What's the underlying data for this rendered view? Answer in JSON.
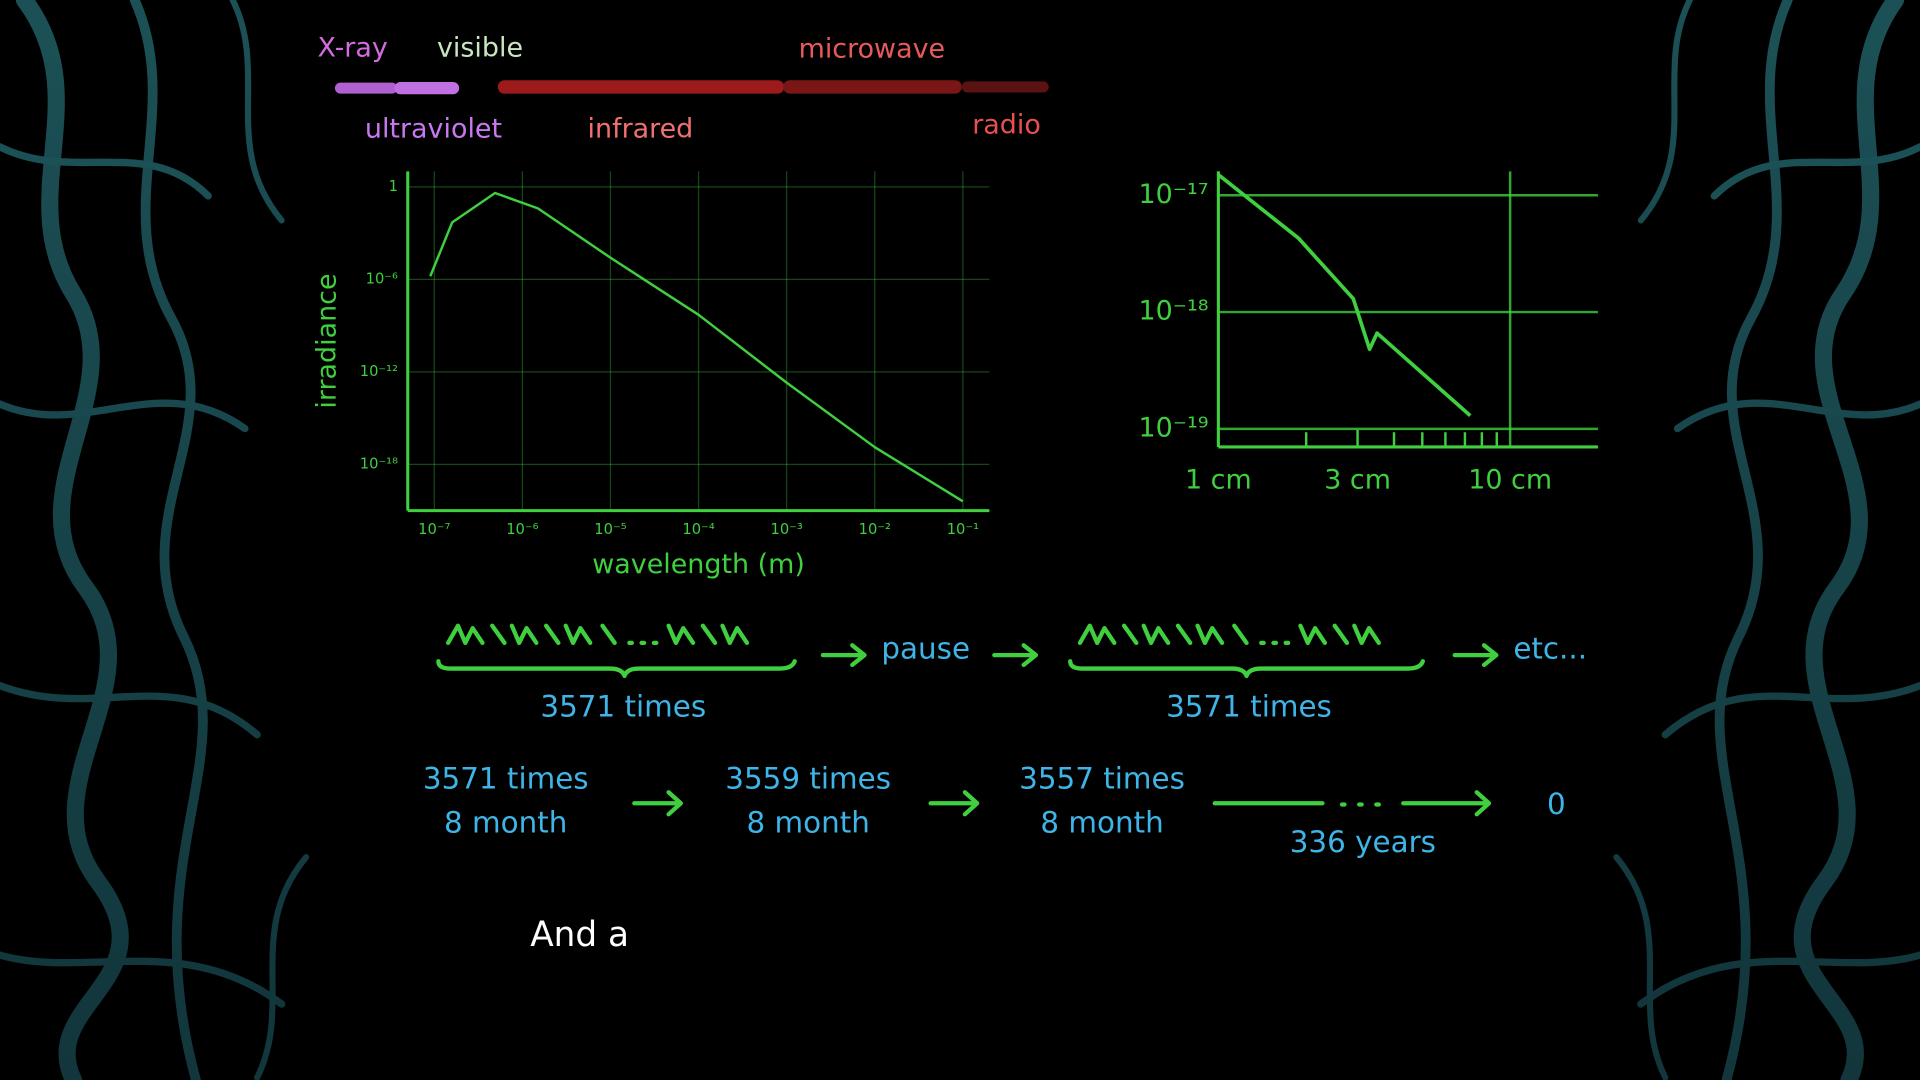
{
  "spectrum": {
    "top_labels": [
      "X-ray",
      "visible",
      "microwave"
    ],
    "bottom_labels": [
      "ultraviolet",
      "infrared",
      "radio"
    ]
  },
  "chart_data": [
    {
      "type": "line",
      "y_label": "irradiance",
      "x_label": "wavelength (m)",
      "x": [
        9e-08,
        1.6e-07,
        4.9e-07,
        1.5e-06,
        1e-05,
        0.0001,
        0.001,
        0.01,
        0.1
      ],
      "values": [
        1.6e-06,
        0.005,
        0.4,
        0.04,
        2.5e-05,
        5e-09,
        2e-13,
        1.3e-17,
        4e-21
      ],
      "color": "#3fcf3f",
      "log_x": true,
      "log_y": true,
      "xlim": [
        5e-08,
        0.2
      ],
      "ylim": [
        1e-21,
        10
      ],
      "xticks": [
        {
          "value": 1e-07,
          "label": "10⁻⁷"
        },
        {
          "value": 1e-06,
          "label": "10⁻⁶"
        },
        {
          "value": 1e-05,
          "label": "10⁻⁵"
        },
        {
          "value": 0.0001,
          "label": "10⁻⁴"
        },
        {
          "value": 0.001,
          "label": "10⁻³"
        },
        {
          "value": 0.01,
          "label": "10⁻²"
        },
        {
          "value": 0.1,
          "label": "10⁻¹"
        }
      ],
      "yticks": [
        1,
        {
          "value": 1e-06,
          "label": "10⁻⁶"
        },
        {
          "value": 1e-12,
          "label": "10⁻¹²"
        },
        {
          "value": 1e-18,
          "label": "10⁻¹⁸"
        }
      ],
      "grid": true
    },
    {
      "type": "line",
      "x": [
        1,
        1.88,
        2.9,
        3.3,
        3.5,
        5.0,
        7.3
      ],
      "values": [
        1.5e-17,
        4.3e-18,
        1.3e-18,
        4.8e-19,
        6.6e-19,
        3e-19,
        1.3e-19
      ],
      "color": "#3fcf3f",
      "log_x": true,
      "log_y": true,
      "xlim": [
        1,
        20
      ],
      "ylim": [
        7e-20,
        1.6e-17
      ],
      "xticks": [
        {
          "value": 1,
          "label": "1 cm"
        },
        {
          "value": 3,
          "label": "3 cm"
        },
        {
          "value": 10,
          "label": "10 cm"
        }
      ],
      "minor_xticks": [
        2,
        4,
        5,
        6,
        7,
        8,
        9
      ],
      "yticks": [
        {
          "value": 1e-17,
          "label": "10⁻¹⁷"
        },
        {
          "value": 1e-18,
          "label": "10⁻¹⁸"
        },
        {
          "value": 1e-19,
          "label": "10⁻¹⁹"
        }
      ],
      "grid": true
    }
  ],
  "sequence": {
    "row1": {
      "first_count": "3571 times",
      "pause": "pause",
      "second_count": "3571 times",
      "end": "etc..."
    },
    "row2": {
      "steps": [
        {
          "count": "3571 times",
          "period": "8 month"
        },
        {
          "count": "3559 times",
          "period": "8 month"
        },
        {
          "count": "3557 times",
          "period": "8 month"
        }
      ],
      "span": "336 years",
      "end": "0"
    }
  },
  "subtitle": "And a"
}
